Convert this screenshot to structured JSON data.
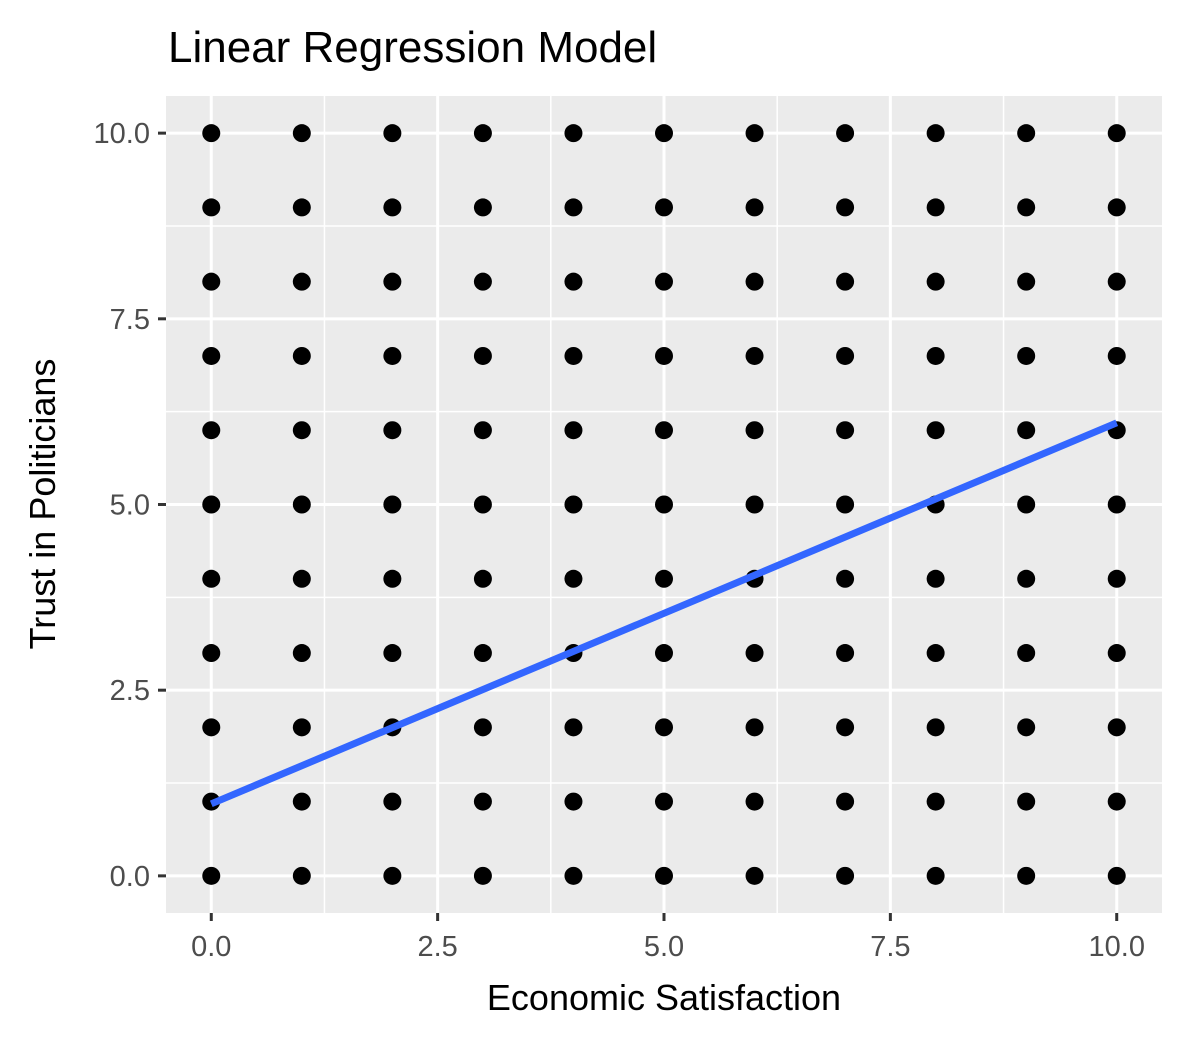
{
  "chart_data": {
    "type": "scatter",
    "title": "Linear Regression Model",
    "xlabel": "Economic Satisfaction",
    "ylabel": "Trust in Politicians",
    "xlim": [
      -0.5,
      10.5
    ],
    "ylim": [
      -0.5,
      10.5
    ],
    "x_ticks": [
      0,
      2.5,
      5,
      7.5,
      10
    ],
    "y_ticks": [
      0,
      2.5,
      5,
      7.5,
      10
    ],
    "x_tick_labels": [
      "0.0",
      "2.5",
      "5.0",
      "7.5",
      "10.0"
    ],
    "y_tick_labels": [
      "0.0",
      "2.5",
      "5.0",
      "7.5",
      "10.0"
    ],
    "grid": true,
    "panel_background": "#ebebeb",
    "grid_color": "#ffffff",
    "point_color": "#000000",
    "points_x": [
      0,
      1,
      2,
      3,
      4,
      5,
      6,
      7,
      8,
      9,
      10
    ],
    "points_y": [
      0,
      1,
      2,
      3,
      4,
      5,
      6,
      7,
      8,
      9,
      10
    ],
    "regression_line": {
      "color": "#3366ff",
      "x": [
        0,
        10
      ],
      "y": [
        0.97,
        6.1
      ]
    }
  }
}
